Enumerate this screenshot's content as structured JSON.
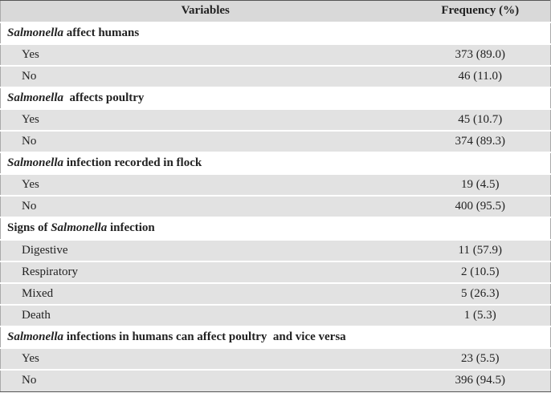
{
  "table": {
    "header": [
      "Variables",
      "Frequency (%)"
    ],
    "sections": [
      {
        "title": [
          {
            "text": "Salmonella",
            "italic": true
          },
          {
            "text": " affect humans"
          }
        ],
        "rows": [
          [
            "Yes",
            "373 (89.0)"
          ],
          [
            "No",
            "46 (11.0)"
          ]
        ]
      },
      {
        "title": [
          {
            "text": "Salmonella",
            "italic": true
          },
          {
            "text": "  affects poultry"
          }
        ],
        "rows": [
          [
            "Yes",
            "45 (10.7)"
          ],
          [
            "No",
            "374 (89.3)"
          ]
        ]
      },
      {
        "title": [
          {
            "text": "Salmonella",
            "italic": true
          },
          {
            "text": " infection recorded in flock"
          }
        ],
        "rows": [
          [
            "Yes",
            "19 (4.5)"
          ],
          [
            "No",
            "400 (95.5)"
          ]
        ]
      },
      {
        "title": [
          {
            "text": "Signs of "
          },
          {
            "text": "Salmonella",
            "italic": true
          },
          {
            "text": " infection"
          }
        ],
        "rows": [
          [
            "Digestive",
            "11 (57.9)"
          ],
          [
            "Respiratory",
            "2 (10.5)"
          ],
          [
            "Mixed",
            "5 (26.3)"
          ],
          [
            "Death",
            "1 (5.3)"
          ]
        ]
      },
      {
        "title": [
          {
            "text": "Salmonella",
            "italic": true
          },
          {
            "text": " infections in humans can affect poultry  and vice versa"
          }
        ],
        "rows": [
          [
            "Yes",
            "23 (5.5)"
          ],
          [
            "No",
            "396 (94.5)"
          ]
        ]
      }
    ]
  }
}
